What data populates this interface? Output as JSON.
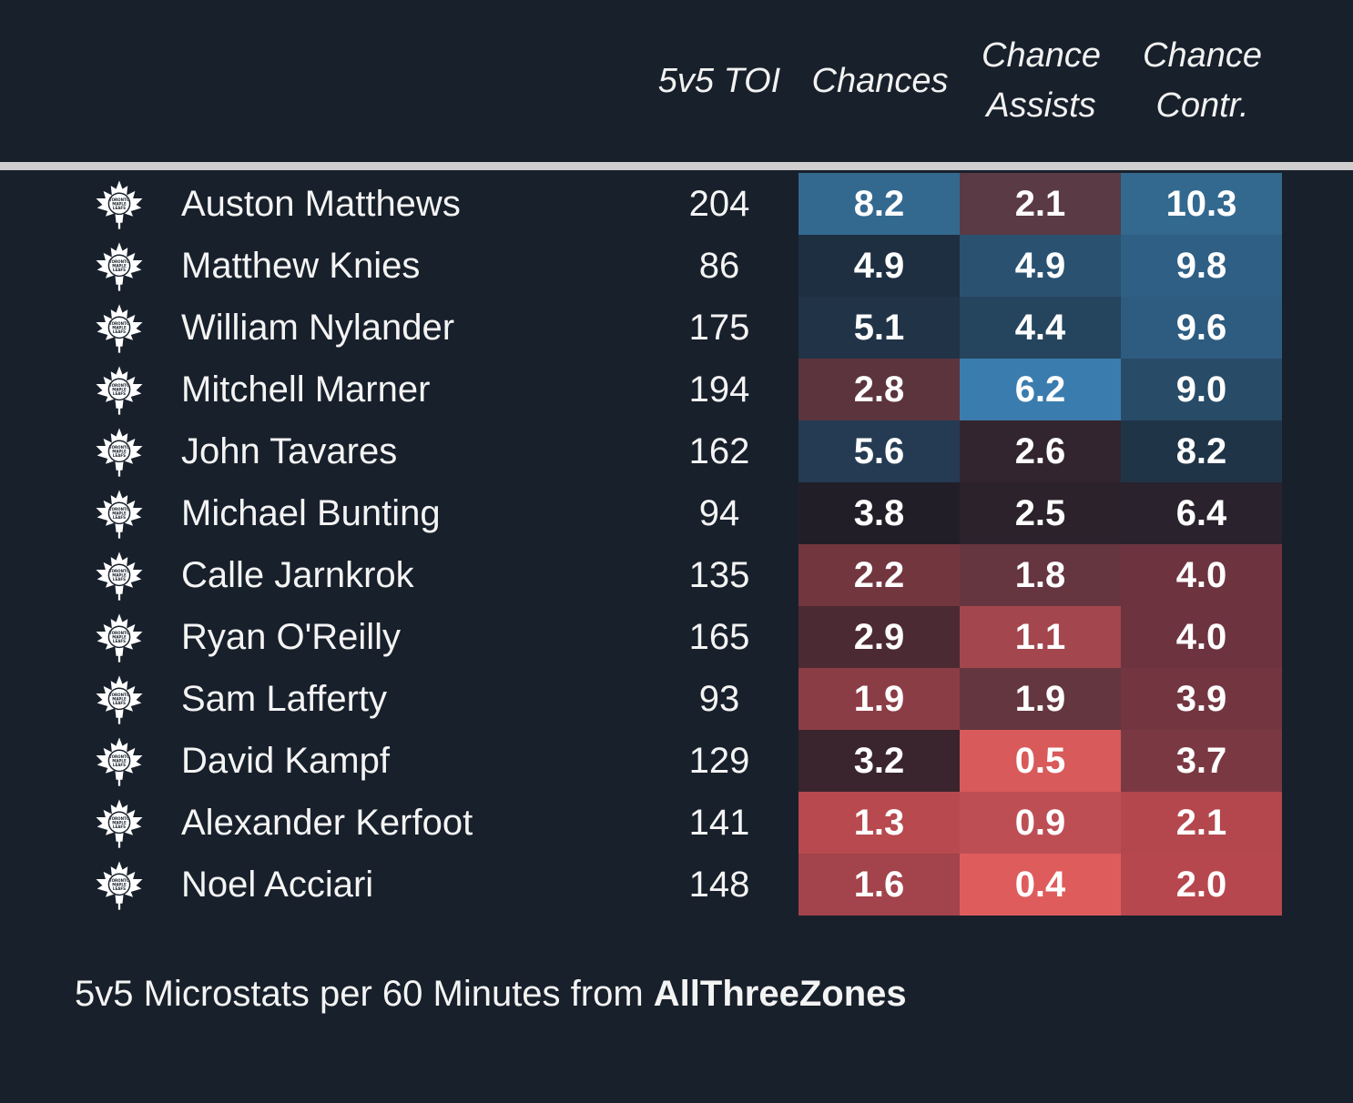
{
  "chart_data": {
    "type": "table",
    "columns": [
      "5v5 TOI",
      "Chances",
      "Chance Assists",
      "Chance Contr."
    ],
    "headers": {
      "toi": [
        "5v5 TOI"
      ],
      "chances": [
        "Chances"
      ],
      "assists": [
        "Chance",
        "Assists"
      ],
      "contr": [
        "Chance",
        "Contr."
      ]
    },
    "rows": [
      {
        "player": "Auston Matthews",
        "toi": "204",
        "chances": "8.2",
        "assists": "2.1",
        "contr": "10.3",
        "colors": [
          "#33698f",
          "#5a3a44",
          "#33698f"
        ]
      },
      {
        "player": "Matthew Knies",
        "toi": "86",
        "chances": "4.9",
        "assists": "4.9",
        "contr": "9.8",
        "colors": [
          "#1e2f42",
          "#2a5270",
          "#2f5f84"
        ]
      },
      {
        "player": "William Nylander",
        "toi": "175",
        "chances": "5.1",
        "assists": "4.4",
        "contr": "9.6",
        "colors": [
          "#203347",
          "#25445e",
          "#2e5c80"
        ]
      },
      {
        "player": "Mitchell Marner",
        "toi": "194",
        "chances": "2.8",
        "assists": "6.2",
        "contr": "9.0",
        "colors": [
          "#5c343d",
          "#3b7cae",
          "#284b68"
        ]
      },
      {
        "player": "John Tavares",
        "toi": "162",
        "chances": "5.6",
        "assists": "2.6",
        "contr": "8.2",
        "colors": [
          "#243b53",
          "#33252f",
          "#203448"
        ]
      },
      {
        "player": "Michael Bunting",
        "toi": "94",
        "chances": "3.8",
        "assists": "2.5",
        "contr": "6.4",
        "colors": [
          "#221e28",
          "#2c222c",
          "#2a222d"
        ]
      },
      {
        "player": "Calle Jarnkrok",
        "toi": "135",
        "chances": "2.2",
        "assists": "1.8",
        "contr": "4.0",
        "colors": [
          "#72363f",
          "#653540",
          "#6d3440"
        ]
      },
      {
        "player": "Ryan O'Reilly",
        "toi": "165",
        "chances": "2.9",
        "assists": "1.1",
        "contr": "4.0",
        "colors": [
          "#4c2a33",
          "#a3464e",
          "#6d3440"
        ]
      },
      {
        "player": "Sam Lafferty",
        "toi": "93",
        "chances": "1.9",
        "assists": "1.9",
        "contr": "3.9",
        "colors": [
          "#8b3d46",
          "#643640",
          "#733640"
        ]
      },
      {
        "player": "David Kampf",
        "toi": "129",
        "chances": "3.2",
        "assists": "0.5",
        "contr": "3.7",
        "colors": [
          "#3a242d",
          "#d85a5a",
          "#7a3942"
        ]
      },
      {
        "player": "Alexander Kerfoot",
        "toi": "141",
        "chances": "1.3",
        "assists": "0.9",
        "contr": "2.1",
        "colors": [
          "#b7494f",
          "#bd4f54",
          "#b4464d"
        ]
      },
      {
        "player": "Noel Acciari",
        "toi": "148",
        "chances": "1.6",
        "assists": "0.4",
        "contr": "2.0",
        "colors": [
          "#a3434b",
          "#de5d5c",
          "#b7474e"
        ]
      }
    ]
  },
  "footer": {
    "prefix": "5v5 Microstats per 60 Minutes from ",
    "source": "AllThreeZones"
  },
  "logo_icon": "maple-leaf-icon",
  "logo_text": [
    "TORONTO",
    "MAPLE",
    "LEAFS"
  ]
}
